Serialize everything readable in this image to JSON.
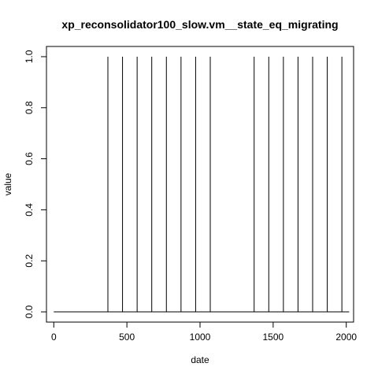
{
  "chart_data": {
    "type": "line",
    "title": "xp_reconsolidator100_slow.vm__state_eq_migrating",
    "xlabel": "date",
    "ylabel": "value",
    "xlim": [
      -50,
      2050
    ],
    "ylim": [
      -0.04,
      1.04
    ],
    "x_ticks": [
      0,
      500,
      1000,
      1500,
      2000
    ],
    "x_tick_labels": [
      "0",
      "500",
      "1000",
      "1500",
      "2000"
    ],
    "y_ticks": [
      0.0,
      0.2,
      0.4,
      0.6,
      0.8,
      1.0
    ],
    "y_tick_labels": [
      "0.0",
      "0.2",
      "0.4",
      "0.6",
      "0.8",
      "1.0"
    ],
    "grid": false,
    "line_color": "#000000",
    "series": [
      {
        "x": [
          0,
          370,
          370,
          370,
          470,
          470,
          470,
          570,
          570,
          570,
          670,
          670,
          670,
          770,
          770,
          770,
          870,
          870,
          870,
          970,
          970,
          970,
          1070,
          1070,
          1070,
          1370,
          1370,
          1370,
          1470,
          1470,
          1470,
          1570,
          1570,
          1570,
          1670,
          1670,
          1670,
          1770,
          1770,
          1770,
          1870,
          1870,
          1870,
          1970,
          1970,
          1970,
          2020
        ],
        "values": [
          0,
          0,
          1,
          0,
          0,
          1,
          0,
          0,
          1,
          0,
          0,
          1,
          0,
          0,
          1,
          0,
          0,
          1,
          0,
          0,
          1,
          0,
          0,
          1,
          0,
          0,
          1,
          0,
          0,
          1,
          0,
          0,
          1,
          0,
          0,
          1,
          0,
          0,
          1,
          0,
          0,
          1,
          0,
          0,
          1,
          0,
          0
        ]
      }
    ]
  }
}
